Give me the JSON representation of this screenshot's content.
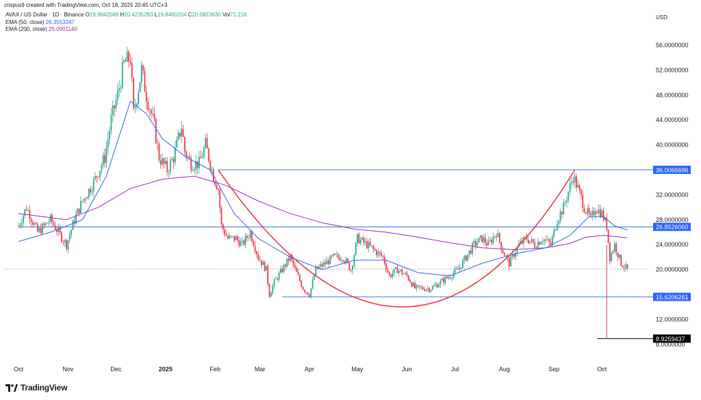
{
  "caption": "crispus9 created with TradingView.com, Oct 18, 2025 20:45 UTC+3",
  "legend": {
    "symbol": "AVAX / US Dollar · 1D · Binance",
    "open_label": "O",
    "open": "19.9842588",
    "high_label": "H",
    "high": "20.4235283",
    "low_label": "L",
    "low": "19.8460204",
    "close_label": "C",
    "close": "20.0823630",
    "vol_label": "Vol",
    "vol": "71.21K",
    "ema50_label": "EMA (50, close)",
    "ema50": "26.3553347",
    "ema200_label": "EMA (200, close)",
    "ema200": "25.0901140"
  },
  "currency": "USD",
  "brand": "TradingView",
  "colors": {
    "up": "#22ab94",
    "down": "#f23645",
    "ema50": "#2962ff",
    "ema200": "#9c27b0",
    "arc": "#f23645",
    "level": "#2962ff"
  },
  "chart_data": {
    "type": "candlestick",
    "title": "AVAX / US Dollar · 1D · Binance",
    "ylim": [
      6,
      59
    ],
    "y_ticks": [
      8,
      12,
      16,
      20,
      24,
      28,
      32,
      36,
      40,
      44,
      48,
      52,
      56
    ],
    "y_tick_labels": [
      "8.0000000",
      "12.0000000",
      "",
      "20.0000000",
      "24.0000000",
      "28.0000000",
      "32.0000000",
      "",
      "40.0000000",
      "44.0000000",
      "48.0000000",
      "52.0000000",
      "56.0000000"
    ],
    "x_labels": [
      {
        "label": "Oct",
        "day": 0
      },
      {
        "label": "Nov",
        "day": 31
      },
      {
        "label": "Dec",
        "day": 61
      },
      {
        "label": "2025",
        "day": 92
      },
      {
        "label": "Feb",
        "day": 123
      },
      {
        "label": "Mar",
        "day": 151
      },
      {
        "label": "Apr",
        "day": 182
      },
      {
        "label": "May",
        "day": 212
      },
      {
        "label": "Jun",
        "day": 243
      },
      {
        "label": "Jul",
        "day": 273
      },
      {
        "label": "Aug",
        "day": 304
      },
      {
        "label": "Sep",
        "day": 335
      },
      {
        "label": "Oct",
        "day": 365
      }
    ],
    "days_total": 382,
    "price_path": [
      [
        0,
        27
      ],
      [
        5,
        30
      ],
      [
        12,
        26
      ],
      [
        20,
        28
      ],
      [
        30,
        24
      ],
      [
        35,
        28
      ],
      [
        40,
        31
      ],
      [
        47,
        34
      ],
      [
        54,
        38
      ],
      [
        58,
        44
      ],
      [
        62,
        48
      ],
      [
        66,
        53
      ],
      [
        70,
        54
      ],
      [
        72,
        45
      ],
      [
        77,
        52
      ],
      [
        80,
        48
      ],
      [
        85,
        43
      ],
      [
        88,
        38
      ],
      [
        93,
        36
      ],
      [
        97,
        38
      ],
      [
        102,
        43
      ],
      [
        104,
        39
      ],
      [
        108,
        37
      ],
      [
        113,
        37
      ],
      [
        117,
        40
      ],
      [
        122,
        35
      ],
      [
        125,
        33
      ],
      [
        127,
        27
      ],
      [
        131,
        25
      ],
      [
        136,
        25
      ],
      [
        140,
        24
      ],
      [
        145,
        26
      ],
      [
        150,
        22
      ],
      [
        155,
        20
      ],
      [
        157,
        16
      ],
      [
        160,
        18
      ],
      [
        165,
        20
      ],
      [
        170,
        22
      ],
      [
        173,
        20
      ],
      [
        178,
        17
      ],
      [
        182,
        16
      ],
      [
        186,
        20
      ],
      [
        192,
        21
      ],
      [
        197,
        22
      ],
      [
        203,
        22
      ],
      [
        208,
        20
      ],
      [
        212,
        25
      ],
      [
        218,
        24
      ],
      [
        223,
        23
      ],
      [
        228,
        22
      ],
      [
        232,
        19
      ],
      [
        237,
        20
      ],
      [
        243,
        19
      ],
      [
        248,
        17
      ],
      [
        254,
        17
      ],
      [
        258,
        17
      ],
      [
        264,
        18
      ],
      [
        270,
        19
      ],
      [
        275,
        20
      ],
      [
        280,
        22
      ],
      [
        285,
        24
      ],
      [
        290,
        25
      ],
      [
        294,
        24
      ],
      [
        299,
        26
      ],
      [
        303,
        23
      ],
      [
        307,
        21
      ],
      [
        313,
        24
      ],
      [
        318,
        25
      ],
      [
        323,
        24
      ],
      [
        328,
        25
      ],
      [
        333,
        24
      ],
      [
        337,
        28
      ],
      [
        341,
        30
      ],
      [
        347,
        35
      ],
      [
        350,
        33
      ],
      [
        354,
        30
      ],
      [
        358,
        28
      ],
      [
        361,
        30
      ],
      [
        365,
        29
      ],
      [
        368,
        27
      ],
      [
        370,
        22
      ],
      [
        373,
        24
      ],
      [
        377,
        21
      ],
      [
        381,
        20
      ]
    ],
    "ema50": [
      [
        0,
        24.5
      ],
      [
        20,
        26
      ],
      [
        40,
        28
      ],
      [
        55,
        35
      ],
      [
        65,
        43
      ],
      [
        70,
        47
      ],
      [
        80,
        45
      ],
      [
        90,
        41
      ],
      [
        105,
        38
      ],
      [
        120,
        36
      ],
      [
        135,
        29
      ],
      [
        150,
        25
      ],
      [
        170,
        22
      ],
      [
        190,
        20
      ],
      [
        210,
        21.5
      ],
      [
        230,
        21.5
      ],
      [
        250,
        19.5
      ],
      [
        270,
        19
      ],
      [
        290,
        21
      ],
      [
        310,
        22.5
      ],
      [
        330,
        23.5
      ],
      [
        345,
        25.5
      ],
      [
        357,
        28.5
      ],
      [
        366,
        28.5
      ],
      [
        373,
        27
      ],
      [
        381,
        26.36
      ]
    ],
    "ema200": [
      [
        0,
        29
      ],
      [
        30,
        28
      ],
      [
        50,
        30
      ],
      [
        70,
        33
      ],
      [
        90,
        34.5
      ],
      [
        110,
        35
      ],
      [
        130,
        33.5
      ],
      [
        150,
        31
      ],
      [
        170,
        29
      ],
      [
        190,
        27.5
      ],
      [
        210,
        26.5
      ],
      [
        230,
        26
      ],
      [
        250,
        25.2
      ],
      [
        270,
        24.3
      ],
      [
        290,
        23.5
      ],
      [
        310,
        23.2
      ],
      [
        330,
        23.5
      ],
      [
        345,
        24.2
      ],
      [
        355,
        25.2
      ],
      [
        366,
        25.5
      ],
      [
        381,
        25.09
      ]
    ],
    "levels": [
      {
        "value": 36.0066696,
        "label": "36.0066696",
        "x_start_day": 125
      },
      {
        "value": 26.852606,
        "label": "26.8526060",
        "x_start_day": 0
      },
      {
        "value": 15.6206261,
        "label": "15.6206261",
        "x_start_day": 165
      },
      {
        "value": 8.9259437,
        "label": "8.9259437",
        "x_start_day": 362,
        "color": "#000000"
      }
    ],
    "current_price": 20.082363,
    "cup_arc": {
      "start_day": 125,
      "start_price": 36,
      "bottom_day": 240,
      "bottom_price": 14,
      "end_day": 348,
      "end_price": 36
    },
    "drop_marker": {
      "day": 368,
      "from": 24,
      "to": 8.9259437
    }
  }
}
